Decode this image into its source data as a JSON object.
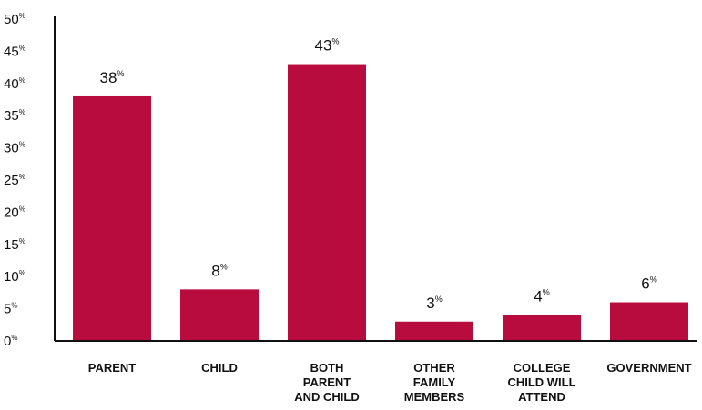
{
  "chart_data": {
    "type": "bar",
    "categories": [
      [
        "PARENT"
      ],
      [
        "CHILD"
      ],
      [
        "BOTH",
        "PARENT",
        "AND CHILD"
      ],
      [
        "OTHER",
        "FAMILY",
        "MEMBERS"
      ],
      [
        "COLLEGE",
        "CHILD WILL",
        "ATTEND"
      ],
      [
        "GOVERNMENT"
      ]
    ],
    "values": [
      38,
      8,
      43,
      3,
      4,
      6
    ],
    "value_suffix": "%",
    "ylim": [
      0,
      50
    ],
    "yticks": [
      0,
      5,
      10,
      15,
      20,
      25,
      30,
      35,
      40,
      45,
      50
    ],
    "title": "",
    "xlabel": "",
    "ylabel": "",
    "grid": false,
    "legend": "none",
    "bar_color": "#b80c3e",
    "axis_color": "#111111"
  }
}
